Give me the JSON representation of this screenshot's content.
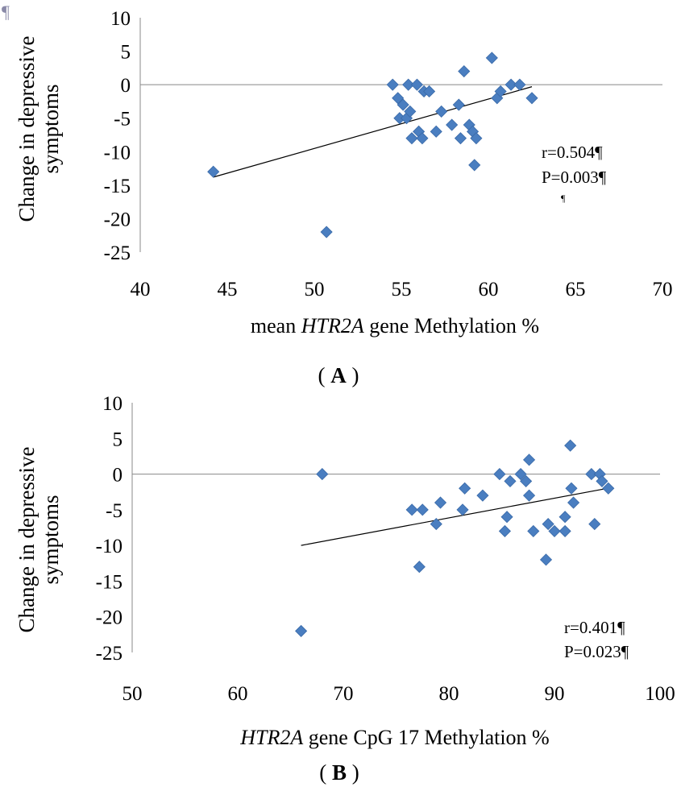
{
  "page": {
    "stray_mark": "¶",
    "pilcrow_fragment": "¶"
  },
  "chart_data": [
    {
      "type": "scatter",
      "panel_label_open": "(",
      "panel_label_letter": "A",
      "panel_label_close": ")",
      "ylabel_line1": "Change in depressive",
      "ylabel_line2": "symptoms",
      "xlabel_pre": "mean ",
      "xlabel_gene": "HTR2A",
      "xlabel_post": " gene Methylation %",
      "xlim": [
        40,
        70
      ],
      "ylim": [
        -25,
        10
      ],
      "x_ticks": [
        "40",
        "45",
        "50",
        "55",
        "60",
        "65",
        "70"
      ],
      "y_ticks": [
        "10",
        "5",
        "0",
        "-5",
        "-10",
        "-15",
        "-20",
        "-25"
      ],
      "grid": false,
      "marker": "diamond",
      "color": "#4a7ec0",
      "annotation_line1": "r=0.504¶",
      "annotation_line2": "P=0.003¶",
      "trendline": {
        "x": [
          44.2,
          62.5
        ],
        "y": [
          -13.8,
          -0.3
        ]
      },
      "points": [
        [
          44.2,
          -13
        ],
        [
          50.7,
          -22
        ],
        [
          54.5,
          0
        ],
        [
          54.8,
          -2
        ],
        [
          54.9,
          -5
        ],
        [
          55.1,
          -3
        ],
        [
          55.3,
          -5
        ],
        [
          55.5,
          -4
        ],
        [
          55.6,
          -8
        ],
        [
          55.4,
          0
        ],
        [
          55.9,
          0
        ],
        [
          56.0,
          -7
        ],
        [
          56.2,
          -8
        ],
        [
          56.3,
          -1
        ],
        [
          56.6,
          -1
        ],
        [
          57.0,
          -7
        ],
        [
          57.3,
          -4
        ],
        [
          57.9,
          -6
        ],
        [
          58.3,
          -3
        ],
        [
          58.4,
          -8
        ],
        [
          58.6,
          2
        ],
        [
          58.9,
          -6
        ],
        [
          59.1,
          -7
        ],
        [
          59.3,
          -8
        ],
        [
          59.2,
          -12
        ],
        [
          60.2,
          4
        ],
        [
          60.5,
          -2
        ],
        [
          60.7,
          -1
        ],
        [
          61.3,
          0
        ],
        [
          61.8,
          0
        ],
        [
          62.5,
          -2
        ]
      ]
    },
    {
      "type": "scatter",
      "panel_label_open": "(",
      "panel_label_letter": "B",
      "panel_label_close": ")",
      "ylabel_line1": "Change in depressive",
      "ylabel_line2": "symptoms",
      "xlabel_gene": "HTR2A",
      "xlabel_post": " gene CpG 17 Methylation %",
      "xlim": [
        50,
        100
      ],
      "ylim": [
        -25,
        10
      ],
      "x_ticks": [
        "50",
        "60",
        "70",
        "80",
        "90",
        "100"
      ],
      "y_ticks": [
        "10",
        "5",
        "0",
        "-5",
        "-10",
        "-15",
        "-20",
        "-25"
      ],
      "grid": false,
      "marker": "diamond",
      "color": "#4a7ec0",
      "annotation_line1": "r=0.401¶",
      "annotation_line2": "P=0.023¶",
      "trendline": {
        "x": [
          66,
          95
        ],
        "y": [
          -10,
          -2
        ]
      },
      "points": [
        [
          66.0,
          -22
        ],
        [
          68.0,
          0
        ],
        [
          76.5,
          -5
        ],
        [
          77.2,
          -13
        ],
        [
          77.5,
          -5
        ],
        [
          78.8,
          -7
        ],
        [
          79.2,
          -4
        ],
        [
          81.3,
          -5
        ],
        [
          81.5,
          -2
        ],
        [
          83.2,
          -3
        ],
        [
          84.8,
          0
        ],
        [
          85.3,
          -8
        ],
        [
          85.5,
          -6
        ],
        [
          85.8,
          -1
        ],
        [
          86.8,
          0
        ],
        [
          87.3,
          -1
        ],
        [
          87.6,
          -3
        ],
        [
          87.6,
          2
        ],
        [
          88.0,
          -8
        ],
        [
          89.2,
          -12
        ],
        [
          89.4,
          -7
        ],
        [
          90.0,
          -8
        ],
        [
          91.0,
          -8
        ],
        [
          91.0,
          -6
        ],
        [
          91.5,
          4
        ],
        [
          91.6,
          -2
        ],
        [
          91.8,
          -4
        ],
        [
          93.5,
          0
        ],
        [
          93.8,
          -7
        ],
        [
          94.3,
          0
        ],
        [
          94.5,
          -1
        ],
        [
          95.1,
          -2
        ]
      ]
    }
  ]
}
